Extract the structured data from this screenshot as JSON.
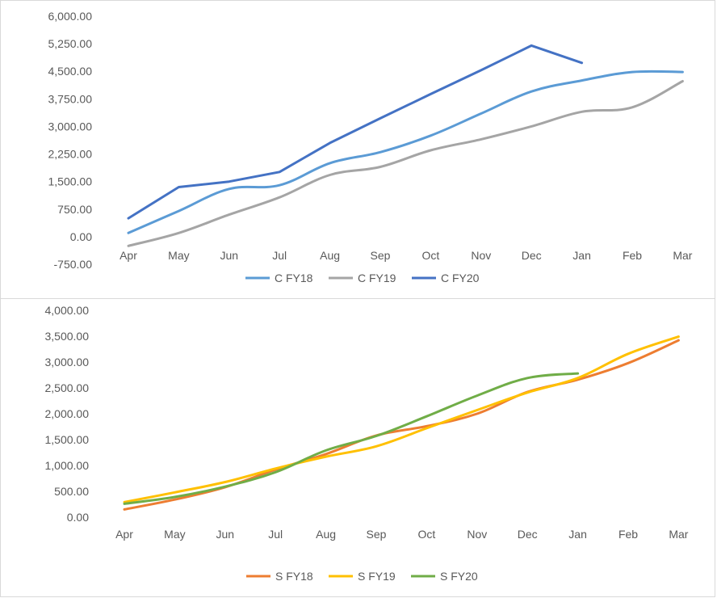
{
  "chart_data": [
    {
      "type": "line",
      "categories": [
        "Apr",
        "May",
        "Jun",
        "Jul",
        "Aug",
        "Sep",
        "Oct",
        "Nov",
        "Dec",
        "Jan",
        "Feb",
        "Mar"
      ],
      "ylim": [
        -750,
        6000
      ],
      "yticks": [
        -750,
        0,
        750,
        1500,
        2250,
        3000,
        3750,
        4500,
        5250,
        6000
      ],
      "ytick_labels": [
        "-750.00",
        "0.00",
        "750.00",
        "1,500.00",
        "2,250.00",
        "3,000.00",
        "3,750.00",
        "4,500.00",
        "5,250.00",
        "6,000.00"
      ],
      "grid": false,
      "legend_position": "bottom",
      "series": [
        {
          "name": "C FY18",
          "color": "#5b9bd5",
          "smooth": true,
          "values": [
            100,
            700,
            1300,
            1400,
            2000,
            2300,
            2750,
            3350,
            3950,
            4250,
            4480,
            4480
          ]
        },
        {
          "name": "C FY19",
          "color": "#a5a5a5",
          "smooth": true,
          "values": [
            -250,
            100,
            600,
            1070,
            1680,
            1900,
            2350,
            2650,
            3000,
            3400,
            3520,
            4230
          ]
        },
        {
          "name": "C FY20",
          "color": "#4472c4",
          "smooth": false,
          "values": [
            500,
            1350,
            1500,
            1760,
            2550,
            3220,
            3880,
            4530,
            5200,
            4730,
            null,
            null
          ]
        }
      ]
    },
    {
      "type": "line",
      "categories": [
        "Apr",
        "May",
        "Jun",
        "Jul",
        "Aug",
        "Sep",
        "Oct",
        "Nov",
        "Dec",
        "Jan",
        "Feb",
        "Mar"
      ],
      "ylim": [
        0,
        4000
      ],
      "yticks": [
        0,
        500,
        1000,
        1500,
        2000,
        2500,
        3000,
        3500,
        4000
      ],
      "ytick_labels": [
        "0.00",
        "500.00",
        "1,000.00",
        "1,500.00",
        "2,000.00",
        "2,500.00",
        "3,000.00",
        "3,500.00",
        "4,000.00"
      ],
      "grid": false,
      "legend_position": "bottom",
      "series": [
        {
          "name": "S FY18",
          "color": "#ed7d31",
          "smooth": true,
          "values": [
            150,
            340,
            580,
            920,
            1220,
            1580,
            1760,
            2000,
            2420,
            2660,
            2980,
            3420
          ]
        },
        {
          "name": "S FY19",
          "color": "#ffc000",
          "smooth": true,
          "values": [
            290,
            480,
            680,
            940,
            1170,
            1370,
            1720,
            2070,
            2410,
            2690,
            3160,
            3490
          ]
        },
        {
          "name": "S FY20",
          "color": "#70ad47",
          "smooth": true,
          "values": [
            260,
            390,
            590,
            870,
            1290,
            1570,
            1950,
            2350,
            2690,
            2780,
            null,
            null
          ]
        }
      ]
    }
  ]
}
